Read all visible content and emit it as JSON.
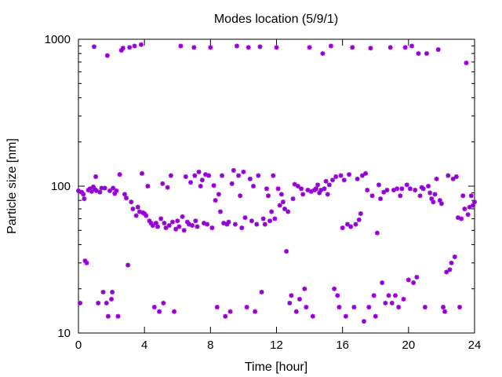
{
  "chart_data": {
    "type": "scatter",
    "title": "Modes location (5/9/1)",
    "xlabel": "Time [hour]",
    "ylabel": "Particle size [nm]",
    "xlim": [
      0,
      24
    ],
    "ylim": [
      10,
      1000
    ],
    "yscale": "log",
    "xticks": [
      0,
      4,
      8,
      12,
      16,
      20,
      24
    ],
    "yticks": [
      10,
      100,
      1000
    ],
    "grid": false,
    "legend": "none",
    "marker_color": "#9400d3",
    "series": [
      {
        "points": [
          [
            0.0,
            93
          ],
          [
            0.1,
            16
          ],
          [
            0.2,
            91
          ],
          [
            0.3,
            88
          ],
          [
            0.35,
            82
          ],
          [
            0.4,
            31
          ],
          [
            0.5,
            30
          ],
          [
            0.6,
            94
          ],
          [
            0.7,
            96
          ],
          [
            0.8,
            92
          ],
          [
            0.9,
            99
          ],
          [
            0.95,
            890
          ],
          [
            1.0,
            95
          ],
          [
            1.05,
            116
          ],
          [
            1.1,
            93
          ],
          [
            1.2,
            16
          ],
          [
            1.3,
            91
          ],
          [
            1.4,
            97
          ],
          [
            1.5,
            19
          ],
          [
            1.6,
            97
          ],
          [
            1.7,
            16
          ],
          [
            1.75,
            775
          ],
          [
            1.8,
            13
          ],
          [
            1.9,
            93
          ],
          [
            2.0,
            17
          ],
          [
            2.05,
            19
          ],
          [
            2.1,
            97
          ],
          [
            2.2,
            89
          ],
          [
            2.3,
            93
          ],
          [
            2.4,
            13
          ],
          [
            2.5,
            120
          ],
          [
            2.6,
            840
          ],
          [
            2.7,
            870
          ],
          [
            2.8,
            88
          ],
          [
            2.9,
            83
          ],
          [
            3.0,
            29
          ],
          [
            3.1,
            880
          ],
          [
            3.2,
            78
          ],
          [
            3.3,
            70
          ],
          [
            3.4,
            900
          ],
          [
            3.5,
            63
          ],
          [
            3.6,
            72
          ],
          [
            3.7,
            67
          ],
          [
            3.8,
            920
          ],
          [
            3.85,
            122
          ],
          [
            3.9,
            66
          ],
          [
            4.0,
            65
          ],
          [
            4.1,
            63
          ],
          [
            4.2,
            100
          ],
          [
            4.3,
            58
          ],
          [
            4.4,
            56
          ],
          [
            4.5,
            54
          ],
          [
            4.6,
            15
          ],
          [
            4.7,
            56
          ],
          [
            4.8,
            53
          ],
          [
            4.9,
            14
          ],
          [
            5.0,
            60
          ],
          [
            5.1,
            104
          ],
          [
            5.15,
            16
          ],
          [
            5.2,
            56
          ],
          [
            5.3,
            52
          ],
          [
            5.4,
            98
          ],
          [
            5.5,
            54
          ],
          [
            5.6,
            118
          ],
          [
            5.7,
            57
          ],
          [
            5.8,
            14
          ],
          [
            5.9,
            51
          ],
          [
            6.0,
            58
          ],
          [
            6.1,
            53
          ],
          [
            6.2,
            900
          ],
          [
            6.3,
            62
          ],
          [
            6.4,
            50
          ],
          [
            6.5,
            116
          ],
          [
            6.6,
            57
          ],
          [
            6.7,
            55
          ],
          [
            6.8,
            106
          ],
          [
            6.9,
            54
          ],
          [
            7.0,
            880
          ],
          [
            7.05,
            118
          ],
          [
            7.1,
            58
          ],
          [
            7.2,
            53
          ],
          [
            7.3,
            125
          ],
          [
            7.4,
            100
          ],
          [
            7.5,
            110
          ],
          [
            7.6,
            56
          ],
          [
            7.7,
            120
          ],
          [
            7.8,
            55
          ],
          [
            7.9,
            118
          ],
          [
            8.0,
            880
          ],
          [
            8.1,
            52
          ],
          [
            8.2,
            101
          ],
          [
            8.3,
            80
          ],
          [
            8.4,
            15
          ],
          [
            8.5,
            88
          ],
          [
            8.6,
            67
          ],
          [
            8.7,
            118
          ],
          [
            8.8,
            56
          ],
          [
            8.9,
            13
          ],
          [
            9.0,
            55
          ],
          [
            9.1,
            57
          ],
          [
            9.2,
            14
          ],
          [
            9.3,
            104
          ],
          [
            9.4,
            128
          ],
          [
            9.5,
            55
          ],
          [
            9.6,
            900
          ],
          [
            9.7,
            118
          ],
          [
            9.8,
            86
          ],
          [
            9.9,
            52
          ],
          [
            10.0,
            125
          ],
          [
            10.1,
            61
          ],
          [
            10.2,
            15
          ],
          [
            10.3,
            880
          ],
          [
            10.4,
            112
          ],
          [
            10.5,
            58
          ],
          [
            10.6,
            100
          ],
          [
            10.7,
            14
          ],
          [
            10.8,
            55
          ],
          [
            10.9,
            118
          ],
          [
            11.0,
            890
          ],
          [
            11.1,
            19
          ],
          [
            11.2,
            60
          ],
          [
            11.3,
            55
          ],
          [
            11.4,
            96
          ],
          [
            11.5,
            86
          ],
          [
            11.6,
            58
          ],
          [
            11.7,
            67
          ],
          [
            11.8,
            118
          ],
          [
            11.9,
            60
          ],
          [
            12.0,
            880
          ],
          [
            12.1,
            96
          ],
          [
            12.2,
            74
          ],
          [
            12.3,
            88
          ],
          [
            12.4,
            78
          ],
          [
            12.5,
            70
          ],
          [
            12.6,
            36
          ],
          [
            12.7,
            67
          ],
          [
            12.8,
            16
          ],
          [
            12.9,
            18
          ],
          [
            13.0,
            82
          ],
          [
            13.1,
            103
          ],
          [
            13.2,
            14
          ],
          [
            13.3,
            100
          ],
          [
            13.4,
            17
          ],
          [
            13.5,
            96
          ],
          [
            13.6,
            88
          ],
          [
            13.7,
            20
          ],
          [
            13.8,
            15
          ],
          [
            13.9,
            94
          ],
          [
            14.0,
            880
          ],
          [
            14.1,
            92
          ],
          [
            14.2,
            13
          ],
          [
            14.3,
            94
          ],
          [
            14.4,
            96
          ],
          [
            14.5,
            102
          ],
          [
            14.6,
            90
          ],
          [
            14.7,
            94
          ],
          [
            14.8,
            800
          ],
          [
            14.9,
            96
          ],
          [
            15.0,
            108
          ],
          [
            15.1,
            88
          ],
          [
            15.2,
            102
          ],
          [
            15.3,
            900
          ],
          [
            15.4,
            110
          ],
          [
            15.5,
            20
          ],
          [
            15.6,
            116
          ],
          [
            15.7,
            18
          ],
          [
            15.8,
            15
          ],
          [
            15.9,
            118
          ],
          [
            16.0,
            52
          ],
          [
            16.1,
            110
          ],
          [
            16.2,
            13
          ],
          [
            16.3,
            55
          ],
          [
            16.4,
            120
          ],
          [
            16.5,
            53
          ],
          [
            16.6,
            880
          ],
          [
            16.7,
            15
          ],
          [
            16.8,
            55
          ],
          [
            16.9,
            112
          ],
          [
            17.0,
            59
          ],
          [
            17.1,
            65
          ],
          [
            17.2,
            118
          ],
          [
            17.3,
            12
          ],
          [
            17.4,
            122
          ],
          [
            17.5,
            94
          ],
          [
            17.6,
            15
          ],
          [
            17.7,
            870
          ],
          [
            17.8,
            86
          ],
          [
            17.9,
            18
          ],
          [
            18.0,
            13
          ],
          [
            18.1,
            48
          ],
          [
            18.2,
            102
          ],
          [
            18.3,
            82
          ],
          [
            18.4,
            22
          ],
          [
            18.5,
            91
          ],
          [
            18.6,
            16
          ],
          [
            18.7,
            94
          ],
          [
            18.8,
            18
          ],
          [
            18.9,
            880
          ],
          [
            19.0,
            16
          ],
          [
            19.1,
            94
          ],
          [
            19.2,
            18
          ],
          [
            19.3,
            96
          ],
          [
            19.4,
            15
          ],
          [
            19.5,
            86
          ],
          [
            19.6,
            96
          ],
          [
            19.7,
            17
          ],
          [
            19.8,
            880
          ],
          [
            19.9,
            102
          ],
          [
            20.0,
            23
          ],
          [
            20.1,
            96
          ],
          [
            20.2,
            900
          ],
          [
            20.3,
            22
          ],
          [
            20.4,
            94
          ],
          [
            20.5,
            24
          ],
          [
            20.6,
            800
          ],
          [
            20.7,
            86
          ],
          [
            20.8,
            98
          ],
          [
            20.9,
            96
          ],
          [
            21.0,
            15
          ],
          [
            21.1,
            800
          ],
          [
            21.2,
            100
          ],
          [
            21.3,
            90
          ],
          [
            21.4,
            82
          ],
          [
            21.5,
            78
          ],
          [
            21.6,
            88
          ],
          [
            21.7,
            112
          ],
          [
            21.8,
            850
          ],
          [
            21.9,
            80
          ],
          [
            22.0,
            76
          ],
          [
            22.1,
            15
          ],
          [
            22.2,
            14
          ],
          [
            22.3,
            26
          ],
          [
            22.4,
            118
          ],
          [
            22.5,
            27
          ],
          [
            22.6,
            30
          ],
          [
            22.7,
            112
          ],
          [
            22.8,
            33
          ],
          [
            22.9,
            116
          ],
          [
            23.0,
            61
          ],
          [
            23.1,
            15
          ],
          [
            23.2,
            60
          ],
          [
            23.3,
            86
          ],
          [
            23.4,
            70
          ],
          [
            23.5,
            690
          ],
          [
            23.6,
            64
          ],
          [
            23.7,
            72
          ],
          [
            23.8,
            86
          ],
          [
            23.9,
            74
          ],
          [
            24.0,
            78
          ]
        ]
      }
    ]
  }
}
